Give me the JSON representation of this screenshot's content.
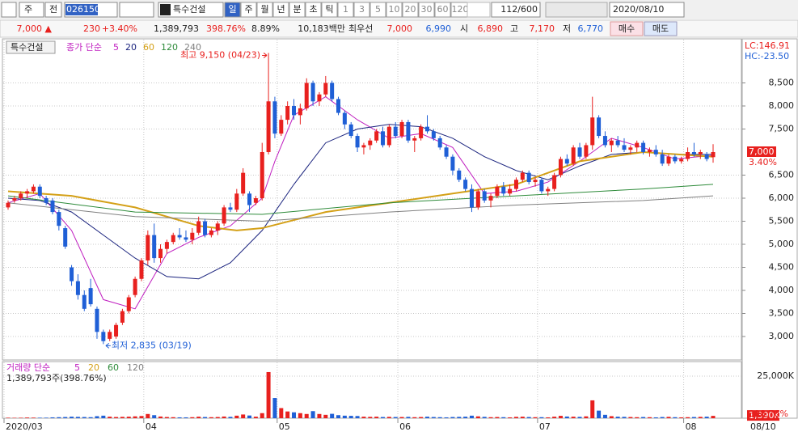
{
  "toolbar": {
    "market": "주",
    "prev": "전",
    "code": "026150",
    "name": "특수건설",
    "periods": [
      "일",
      "주",
      "월",
      "년",
      "분",
      "초",
      "틱",
      "1",
      "3",
      "5",
      "10",
      "20",
      "30",
      "60",
      "120"
    ],
    "count": "112/600",
    "date": "2020/08/10"
  },
  "info": {
    "price": "7,000 ▲",
    "change": "230",
    "rate": "+3.40%",
    "volume": "1,389,793",
    "volume_rate": "398.76%",
    "turnover": "8.89%",
    "amount": "10,183백만",
    "best_label": "최우선",
    "ask": "7,000",
    "bid": "6,990",
    "open_label": "시",
    "open": "6,890",
    "high_label": "고",
    "high": "7,170",
    "low_label": "저",
    "low": "6,770",
    "buy": "매수",
    "sell": "매도"
  },
  "chart_data": [
    {
      "type": "candlestick",
      "legend_box": "특수건설",
      "legend_title": "종가 단순",
      "up_color": "#e8201e",
      "down_color": "#1f5fd6",
      "grid": true,
      "lc": "LC:146.91",
      "hc": "HC:-23.50",
      "current_label": "7,000",
      "current_rate": "3.40%",
      "current_value": 7000,
      "high_note": "최고 9,150 (04/23)",
      "low_note": "최저 2,835 (03/19)",
      "high_index": 41,
      "low_index": 15,
      "ylim": [
        2500,
        9200
      ],
      "yticks": [
        {
          "value": 3000,
          "label": "3,000"
        },
        {
          "value": 3500,
          "label": "3,500"
        },
        {
          "value": 4000,
          "label": "4,000"
        },
        {
          "value": 4500,
          "label": "4,500"
        },
        {
          "value": 5000,
          "label": "5,000"
        },
        {
          "value": 5500,
          "label": "5,500"
        },
        {
          "value": 6000,
          "label": "6,000"
        },
        {
          "value": 6500,
          "label": "6,500"
        },
        {
          "value": 7500,
          "label": "7,500"
        },
        {
          "value": 8000,
          "label": "8,000"
        },
        {
          "value": 8500,
          "label": "8,500"
        }
      ],
      "x_labels": [
        {
          "value": 0,
          "label": "2020/03"
        },
        {
          "value": 22,
          "label": "04"
        },
        {
          "value": 43,
          "label": "05"
        },
        {
          "value": 62,
          "label": "06"
        },
        {
          "value": 84,
          "label": "07"
        },
        {
          "value": 107,
          "label": "08"
        }
      ],
      "last_label": "08/10",
      "candles": [
        [
          5800,
          5950,
          5750,
          5900
        ],
        [
          5950,
          6050,
          5900,
          6000
        ],
        [
          6000,
          6150,
          5950,
          6100
        ],
        [
          6100,
          6200,
          6000,
          6150
        ],
        [
          6150,
          6300,
          6100,
          6250
        ],
        [
          6250,
          6300,
          6000,
          6050
        ],
        [
          6000,
          6050,
          5850,
          5900
        ],
        [
          5950,
          6000,
          5650,
          5700
        ],
        [
          5700,
          5750,
          5300,
          5400
        ],
        [
          5350,
          5400,
          4900,
          4950
        ],
        [
          4500,
          4550,
          4100,
          4200
        ],
        [
          4200,
          4350,
          3800,
          3900
        ],
        [
          3900,
          4000,
          3550,
          3600
        ],
        [
          4050,
          4250,
          3650,
          3700
        ],
        [
          3600,
          3650,
          2950,
          3100
        ],
        [
          3100,
          3150,
          2835,
          2900
        ],
        [
          2950,
          3150,
          2900,
          3100
        ],
        [
          3000,
          3300,
          2950,
          3250
        ],
        [
          3300,
          3600,
          3250,
          3550
        ],
        [
          3550,
          3900,
          3500,
          3850
        ],
        [
          3900,
          4300,
          3850,
          4250
        ],
        [
          4250,
          4700,
          4200,
          4650
        ],
        [
          4650,
          5300,
          4550,
          5200
        ],
        [
          5200,
          5450,
          4600,
          4700
        ],
        [
          4700,
          5000,
          4600,
          4900
        ],
        [
          4900,
          5100,
          4800,
          5050
        ],
        [
          5050,
          5250,
          5000,
          5200
        ],
        [
          5200,
          5350,
          5100,
          5150
        ],
        [
          5150,
          5300,
          5050,
          5100
        ],
        [
          5100,
          5350,
          5000,
          5250
        ],
        [
          5250,
          5600,
          5200,
          5500
        ],
        [
          5500,
          5550,
          5150,
          5200
        ],
        [
          5200,
          5350,
          5150,
          5300
        ],
        [
          5300,
          5500,
          5200,
          5450
        ],
        [
          5450,
          5850,
          5400,
          5800
        ],
        [
          5800,
          5900,
          5700,
          5750
        ],
        [
          5750,
          6200,
          5700,
          6100
        ],
        [
          6100,
          6650,
          6050,
          6550
        ],
        [
          6100,
          6150,
          5700,
          5850
        ],
        [
          5900,
          6050,
          5850,
          6000
        ],
        [
          6000,
          7200,
          5950,
          7000
        ],
        [
          7000,
          9150,
          6950,
          8100
        ],
        [
          8100,
          8200,
          7300,
          7400
        ],
        [
          7400,
          7800,
          7350,
          7700
        ],
        [
          7700,
          8100,
          7600,
          8000
        ],
        [
          8000,
          8150,
          7700,
          7800
        ],
        [
          7800,
          8050,
          7600,
          7950
        ],
        [
          7950,
          8600,
          7900,
          8500
        ],
        [
          8500,
          8550,
          8000,
          8100
        ],
        [
          8100,
          8300,
          8000,
          8250
        ],
        [
          8250,
          8650,
          8200,
          8500
        ],
        [
          8500,
          8550,
          8100,
          8150
        ],
        [
          8150,
          8200,
          7800,
          7850
        ],
        [
          7850,
          7900,
          7500,
          7600
        ],
        [
          7600,
          7650,
          7300,
          7350
        ],
        [
          7350,
          7400,
          7000,
          7100
        ],
        [
          7100,
          7200,
          6950,
          7150
        ],
        [
          7150,
          7300,
          7050,
          7250
        ],
        [
          7250,
          7500,
          7200,
          7450
        ],
        [
          7450,
          7550,
          7100,
          7150
        ],
        [
          7150,
          7600,
          7100,
          7550
        ],
        [
          7550,
          7650,
          7300,
          7350
        ],
        [
          7350,
          7700,
          7300,
          7650
        ],
        [
          7650,
          7700,
          7200,
          7250
        ],
        [
          7250,
          7350,
          7000,
          7300
        ],
        [
          7300,
          7600,
          7250,
          7550
        ],
        [
          7550,
          7800,
          7400,
          7450
        ],
        [
          7450,
          7500,
          7250,
          7300
        ],
        [
          7300,
          7350,
          7050,
          7100
        ],
        [
          7100,
          7150,
          6850,
          6900
        ],
        [
          6900,
          6950,
          6500,
          6600
        ],
        [
          6600,
          6650,
          6350,
          6400
        ],
        [
          6400,
          6450,
          6150,
          6200
        ],
        [
          6200,
          6300,
          5700,
          5800
        ],
        [
          5800,
          6200,
          5750,
          6150
        ],
        [
          6150,
          6200,
          5900,
          5950
        ],
        [
          5950,
          6100,
          5800,
          6050
        ],
        [
          6050,
          6300,
          6000,
          6250
        ],
        [
          6250,
          6350,
          6050,
          6100
        ],
        [
          6100,
          6300,
          6050,
          6200
        ],
        [
          6200,
          6450,
          6150,
          6400
        ],
        [
          6400,
          6600,
          6350,
          6550
        ],
        [
          6550,
          6600,
          6300,
          6350
        ],
        [
          6350,
          6450,
          6250,
          6400
        ],
        [
          6400,
          6450,
          6100,
          6150
        ],
        [
          6150,
          6250,
          6050,
          6200
        ],
        [
          6200,
          6550,
          6150,
          6500
        ],
        [
          6500,
          6900,
          6450,
          6850
        ],
        [
          6850,
          6950,
          6700,
          6750
        ],
        [
          6750,
          7150,
          6700,
          7100
        ],
        [
          7100,
          7200,
          6850,
          6900
        ],
        [
          6900,
          7200,
          6850,
          7150
        ],
        [
          7150,
          8200,
          7050,
          7750
        ],
        [
          7750,
          7800,
          7300,
          7350
        ],
        [
          7350,
          7450,
          7100,
          7150
        ],
        [
          7150,
          7300,
          7000,
          7250
        ],
        [
          7250,
          7350,
          7100,
          7150
        ],
        [
          7150,
          7300,
          7000,
          7050
        ],
        [
          7050,
          7150,
          6950,
          7100
        ],
        [
          7100,
          7250,
          7000,
          7200
        ],
        [
          7200,
          7250,
          6950,
          7000
        ],
        [
          7000,
          7100,
          6900,
          7050
        ],
        [
          7050,
          7150,
          6900,
          6950
        ],
        [
          6950,
          7050,
          6700,
          6750
        ],
        [
          6750,
          6950,
          6700,
          6900
        ],
        [
          6900,
          6950,
          6750,
          6800
        ],
        [
          6800,
          6900,
          6750,
          6850
        ],
        [
          6850,
          7100,
          6800,
          7000
        ],
        [
          7000,
          7200,
          6900,
          6950
        ],
        [
          6950,
          7050,
          6850,
          7000
        ],
        [
          6950,
          7000,
          6800,
          6850
        ],
        [
          6890,
          7170,
          6770,
          7000
        ]
      ],
      "series": [
        {
          "name": "5",
          "color": "#c020c0",
          "x": [
            0,
            5,
            10,
            15,
            20,
            25,
            30,
            35,
            40,
            42,
            45,
            50,
            55,
            60,
            65,
            70,
            75,
            80,
            85,
            90,
            95,
            100,
            105,
            111
          ],
          "values": [
            5900,
            6100,
            5300,
            3800,
            3600,
            4800,
            5150,
            5400,
            6000,
            6800,
            7800,
            8200,
            7700,
            7300,
            7400,
            7100,
            6100,
            6150,
            6350,
            6800,
            7300,
            7100,
            6850,
            6930
          ]
        },
        {
          "name": "20",
          "color": "#1a237e",
          "x": [
            0,
            5,
            10,
            15,
            20,
            25,
            30,
            35,
            40,
            45,
            50,
            55,
            60,
            65,
            70,
            75,
            80,
            85,
            90,
            95,
            100,
            105,
            111
          ],
          "values": [
            6000,
            5950,
            5700,
            5200,
            4700,
            4300,
            4250,
            4600,
            5300,
            6300,
            7200,
            7500,
            7600,
            7550,
            7300,
            6900,
            6600,
            6400,
            6700,
            6950,
            7000,
            6950,
            6950
          ]
        },
        {
          "name": "60",
          "color": "#d4a017",
          "x": [
            0,
            10,
            20,
            30,
            36,
            40,
            50,
            60,
            70,
            80,
            90,
            100,
            111
          ],
          "values": [
            6150,
            6050,
            5800,
            5400,
            5300,
            5350,
            5700,
            5900,
            6100,
            6300,
            6800,
            7000,
            6900
          ]
        },
        {
          "name": "120",
          "color": "#2e8b3a",
          "x": [
            0,
            20,
            40,
            60,
            80,
            100,
            111
          ],
          "values": [
            6050,
            5700,
            5650,
            5900,
            6050,
            6200,
            6300
          ]
        },
        {
          "name": "240",
          "color": "#808080",
          "x": [
            0,
            20,
            40,
            60,
            80,
            100,
            111
          ],
          "values": [
            5900,
            5600,
            5500,
            5700,
            5850,
            5950,
            6050
          ]
        }
      ]
    },
    {
      "type": "bar",
      "legend_title": "거래량 단순",
      "legend_items": [
        {
          "name": "5",
          "color": "#c020c0"
        },
        {
          "name": "20",
          "color": "#d4a017"
        },
        {
          "name": "60",
          "color": "#2e8b3a"
        },
        {
          "name": "120",
          "color": "#808080"
        }
      ],
      "summary": "1,389,793주(398.76%)",
      "current_label": "1,390K",
      "current_rate": "398.76%",
      "current_value": 1390,
      "ylim": [
        0,
        27000
      ],
      "yticks": [
        {
          "value": 25000,
          "label": "25,000K"
        }
      ],
      "values": [
        300,
        250,
        280,
        400,
        350,
        300,
        320,
        500,
        600,
        700,
        900,
        800,
        700,
        600,
        1200,
        1500,
        900,
        700,
        800,
        900,
        1100,
        1300,
        2500,
        1800,
        1000,
        700,
        600,
        500,
        500,
        600,
        900,
        700,
        600,
        700,
        1000,
        800,
        1500,
        2200,
        1600,
        900,
        3000,
        27400,
        12000,
        6000,
        4000,
        3500,
        3000,
        2500,
        4200,
        2500,
        2000,
        2600,
        1800,
        1500,
        1400,
        1300,
        900,
        800,
        900,
        700,
        800,
        700,
        700,
        800,
        600,
        700,
        900,
        700,
        600,
        500,
        700,
        800,
        900,
        1500,
        1100,
        800,
        600,
        700,
        600,
        500,
        800,
        900,
        700,
        600,
        600,
        500,
        900,
        1400,
        1000,
        900,
        800,
        1100,
        10600,
        4500,
        2000,
        1200,
        900,
        800,
        700,
        600,
        700,
        600,
        500,
        700,
        800,
        600,
        500,
        600,
        700,
        800,
        900,
        1390
      ]
    }
  ]
}
